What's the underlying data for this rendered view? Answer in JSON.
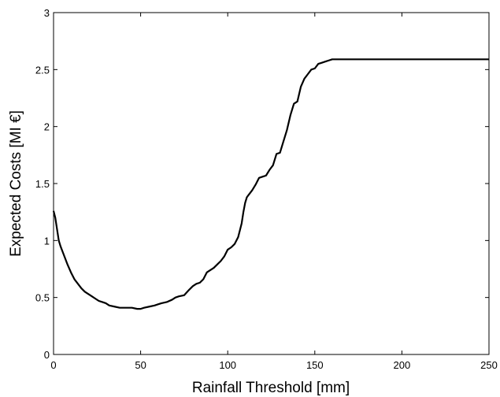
{
  "chart_data": {
    "type": "line",
    "title": "",
    "xlabel": "Rainfall Threshold [mm]",
    "ylabel": "Expected Costs [MI €]",
    "xlim": [
      0,
      250
    ],
    "ylim": [
      0,
      3
    ],
    "xticks": [
      0,
      50,
      100,
      150,
      200,
      250
    ],
    "yticks": [
      0,
      0.5,
      1,
      1.5,
      2,
      2.5,
      3
    ],
    "xtick_labels": [
      "0",
      "50",
      "100",
      "150",
      "200",
      "250"
    ],
    "ytick_labels": [
      "0",
      "0.5",
      "1",
      "1.5",
      "2",
      "2.5",
      "3"
    ],
    "grid": false,
    "legend": "none",
    "line_color": "#000000",
    "series": [
      {
        "x": [
          0,
          1,
          2,
          3,
          4,
          5,
          6,
          8,
          10,
          12,
          14,
          16,
          18,
          20,
          22,
          24,
          26,
          28,
          30,
          32,
          35,
          38,
          40,
          42,
          45,
          48,
          50,
          52,
          55,
          58,
          60,
          62,
          65,
          68,
          70,
          72,
          75,
          78,
          80,
          82,
          84,
          86,
          88,
          90,
          92,
          94,
          96,
          98,
          100,
          102,
          104,
          106,
          108,
          109,
          110,
          111,
          112,
          114,
          116,
          118,
          120,
          122,
          124,
          126,
          128,
          130,
          132,
          134,
          136,
          138,
          140,
          142,
          144,
          146,
          148,
          150,
          152,
          154,
          156,
          158,
          160,
          163,
          166,
          170,
          175,
          180,
          190,
          200,
          210,
          220,
          230,
          240,
          250
        ],
        "values": [
          1.26,
          1.2,
          1.1,
          1.0,
          0.95,
          0.91,
          0.87,
          0.79,
          0.72,
          0.66,
          0.62,
          0.58,
          0.55,
          0.53,
          0.51,
          0.49,
          0.47,
          0.46,
          0.45,
          0.43,
          0.42,
          0.41,
          0.41,
          0.41,
          0.41,
          0.4,
          0.4,
          0.41,
          0.42,
          0.43,
          0.44,
          0.45,
          0.46,
          0.48,
          0.5,
          0.51,
          0.52,
          0.57,
          0.6,
          0.62,
          0.63,
          0.66,
          0.72,
          0.74,
          0.76,
          0.79,
          0.82,
          0.86,
          0.92,
          0.94,
          0.97,
          1.03,
          1.15,
          1.25,
          1.33,
          1.38,
          1.4,
          1.44,
          1.49,
          1.55,
          1.56,
          1.57,
          1.62,
          1.66,
          1.76,
          1.77,
          1.87,
          1.97,
          2.1,
          2.2,
          2.22,
          2.35,
          2.42,
          2.46,
          2.5,
          2.51,
          2.55,
          2.56,
          2.57,
          2.58,
          2.59,
          2.59,
          2.59,
          2.59,
          2.59,
          2.59,
          2.59,
          2.59,
          2.59,
          2.59,
          2.59,
          2.59,
          2.59
        ]
      }
    ]
  }
}
